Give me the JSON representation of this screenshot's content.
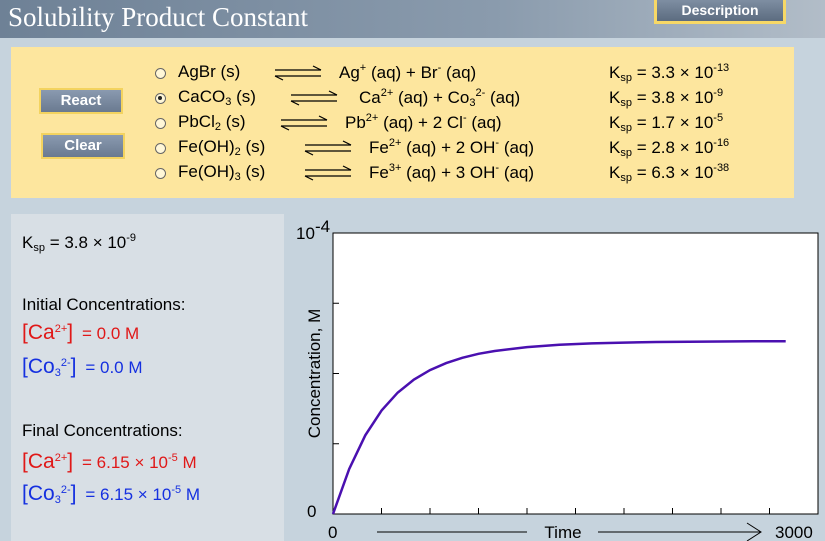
{
  "header": {
    "title": "Solubility Product Constant",
    "description_label": "Description"
  },
  "controls": {
    "react_label": "React",
    "clear_label": "Clear"
  },
  "reactions": [
    {
      "salt": "AgBr (s)",
      "cation": "Ag",
      "cation_charge": "+",
      "cation_coef": "",
      "anion": "Br",
      "anion_sub": "",
      "anion_charge": "-",
      "anion_coef": "",
      "ksp_mantissa": "3.3",
      "ksp_exp": "-13",
      "selected": false
    },
    {
      "salt": "CaCO",
      "salt_sub": "3",
      "salt_suffix": " (s)",
      "cation": "Ca",
      "cation_charge": "2+",
      "cation_coef": "",
      "anion": "Co",
      "anion_sub": "3",
      "anion_charge": "2-",
      "anion_coef": "",
      "ksp_mantissa": "3.8",
      "ksp_exp": "-9",
      "selected": true
    },
    {
      "salt": "PbCl",
      "salt_sub": "2",
      "salt_suffix": " (s)",
      "cation": "Pb",
      "cation_charge": "2+",
      "cation_coef": "",
      "anion": "Cl",
      "anion_sub": "",
      "anion_charge": "-",
      "anion_coef": "2 ",
      "ksp_mantissa": "1.7",
      "ksp_exp": "-5",
      "selected": false
    },
    {
      "salt": "Fe(OH)",
      "salt_sub": "2",
      "salt_suffix": " (s)",
      "cation": "Fe",
      "cation_charge": "2+",
      "cation_coef": "",
      "anion": "OH",
      "anion_sub": "",
      "anion_charge": "-",
      "anion_coef": "2 ",
      "ksp_mantissa": "2.8",
      "ksp_exp": "-16",
      "selected": false
    },
    {
      "salt": "Fe(OH)",
      "salt_sub": "3",
      "salt_suffix": " (s)",
      "cation": "Fe",
      "cation_charge": "3+",
      "cation_coef": "",
      "anion": "OH",
      "anion_sub": "",
      "anion_charge": "-",
      "anion_coef": "3 ",
      "ksp_mantissa": "6.3",
      "ksp_exp": "-38",
      "selected": false
    }
  ],
  "info": {
    "ksp_label": "K",
    "ksp_sub": "sp",
    "ksp_value": " = 3.8 × 10",
    "ksp_exp": "-9",
    "initial_heading": "Initial Concentrations:",
    "final_heading": "Final Concentrations:",
    "cation_symbol": "Ca",
    "cation_charge": "2+",
    "anion_symbol": "Co",
    "anion_sub": "3",
    "anion_charge": "2-",
    "initial_cation_value": "=  0.0 M",
    "initial_anion_value": "= 0.0 M",
    "final_cation_value": "=   6.15 × 10",
    "final_cation_exp": "-5",
    "final_cation_unit": " M",
    "final_anion_value": "=  6.15 × 10",
    "final_anion_exp": "-5",
    "final_anion_unit": " M"
  },
  "chart_data": {
    "type": "line",
    "ylabel": "Concentration,  M",
    "xlabel": "Time",
    "x_min_label": "0",
    "x_max_label": "3000",
    "y_min_label": "0",
    "y_max_label": "10",
    "y_max_exp": "-4",
    "xlim": [
      0,
      3000
    ],
    "ylim": [
      0,
      0.0001
    ],
    "series": [
      {
        "color": "#4a10b0",
        "x": [
          0,
          100,
          200,
          300,
          400,
          500,
          600,
          700,
          800,
          900,
          1000,
          1200,
          1400,
          1600,
          1800,
          2000,
          2200,
          2400,
          2600,
          2800
        ],
        "y": [
          0,
          1.6e-05,
          2.8e-05,
          3.68e-05,
          4.32e-05,
          4.78e-05,
          5.12e-05,
          5.37e-05,
          5.56e-05,
          5.7e-05,
          5.8e-05,
          5.94e-05,
          6.02e-05,
          6.07e-05,
          6.1e-05,
          6.12e-05,
          6.13e-05,
          6.14e-05,
          6.15e-05,
          6.15e-05
        ]
      }
    ],
    "grid": false,
    "colors": {
      "series": "#4a10b0",
      "plot_bg": "#ffffff"
    }
  }
}
